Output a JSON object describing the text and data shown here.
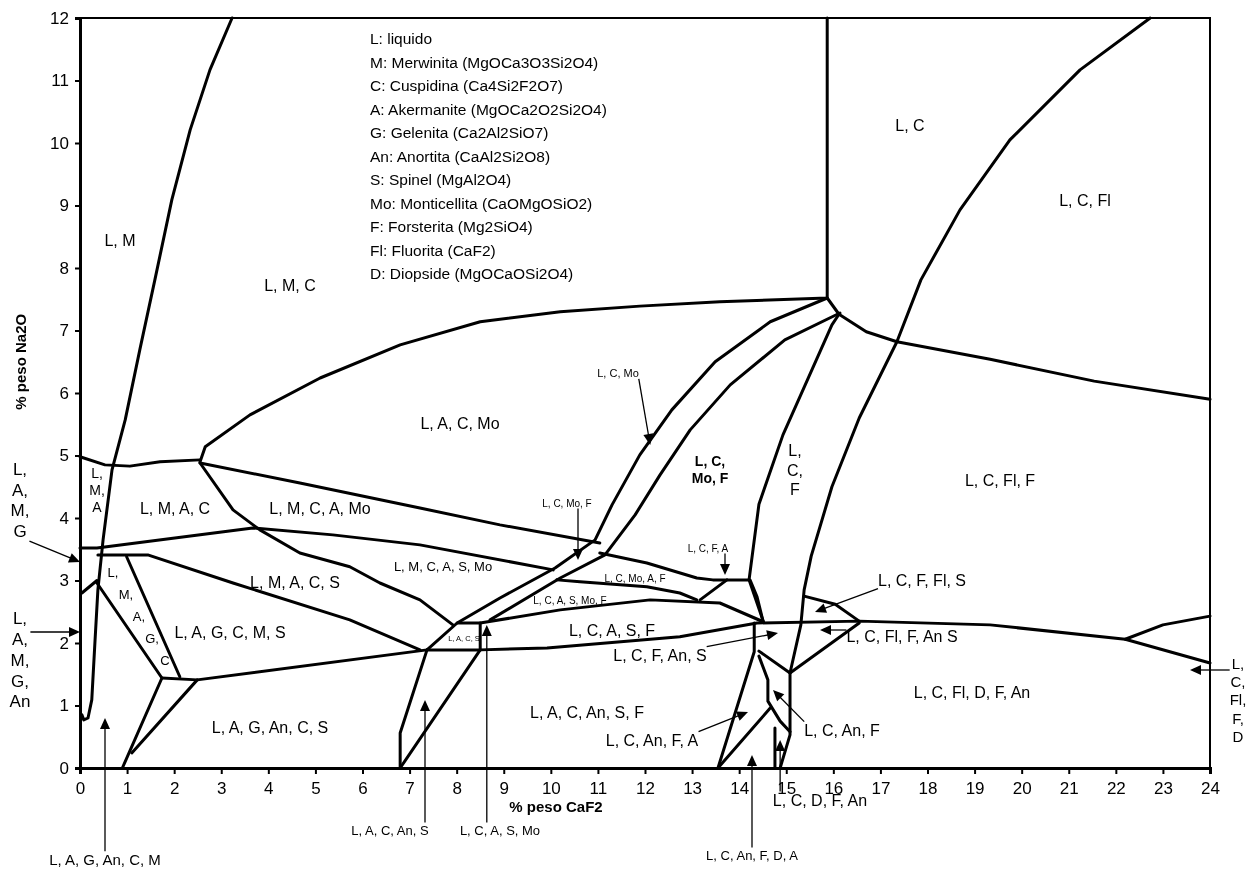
{
  "chart_data": {
    "type": "line",
    "xlabel": "% peso CaF2",
    "ylabel": "% peso Na2O",
    "xlim": [
      0,
      24
    ],
    "ylim": [
      0,
      12
    ],
    "xticks": [
      0,
      1,
      2,
      3,
      4,
      5,
      6,
      7,
      8,
      9,
      10,
      11,
      12,
      13,
      14,
      15,
      16,
      17,
      18,
      19,
      20,
      21,
      22,
      23,
      24
    ],
    "yticks": [
      0,
      1,
      2,
      3,
      4,
      5,
      6,
      7,
      8,
      9,
      10,
      11,
      12
    ],
    "marker": "none",
    "line_style": "solid",
    "series": [
      {
        "color": "#000000",
        "x": [
          3.23,
          2.76,
          2.34,
          1.95,
          1.59,
          1.27,
          0.96,
          0.68,
          0.49,
          0.38,
          0.32,
          0.25,
          0.17,
          0.08,
          0.04
        ],
        "values": [
          12,
          11.17,
          10.21,
          9.09,
          7.81,
          6.69,
          5.57,
          4.77,
          3.65,
          2.85,
          2.05,
          1.09,
          0.8,
          0.77,
          0.85
        ]
      },
      {
        "color": "#000000",
        "x": [
          0,
          0.53,
          1.06,
          1.7,
          2.55
        ],
        "values": [
          4.98,
          4.85,
          4.83,
          4.9,
          4.93
        ]
      },
      {
        "color": "#000000",
        "x": [
          2.55,
          2.66,
          3.61,
          5.1,
          6.8,
          8.5,
          10.2,
          11.89,
          13.59,
          15.87,
          15.87
        ],
        "values": [
          4.9,
          5.14,
          5.65,
          6.24,
          6.77,
          7.14,
          7.3,
          7.39,
          7.46,
          7.52,
          12
        ]
      },
      {
        "color": "#000000",
        "x": [
          22.73,
          21.24,
          19.75,
          18.69,
          17.86,
          17.35,
          16.55,
          15.97,
          15.53,
          15.38,
          15.31,
          15.08,
          15.08,
          14.87
        ],
        "values": [
          12,
          11.17,
          10.05,
          8.93,
          7.81,
          6.82,
          5.6,
          4.5,
          3.39,
          2.85,
          2.29,
          1.52,
          0.53,
          0
        ]
      },
      {
        "color": "#000000",
        "x": [
          15.87,
          16.12,
          16.7,
          17.35,
          19.33,
          21.54,
          24
        ],
        "values": [
          7.52,
          7.26,
          6.98,
          6.82,
          6.54,
          6.19,
          5.9
        ]
      },
      {
        "color": "#000000",
        "x": [
          16.12,
          15.97,
          14.93,
          14.42,
          14.21,
          14.51
        ],
        "values": [
          7.26,
          7.09,
          5.33,
          4.22,
          3.01,
          2.35
        ]
      },
      {
        "color": "#000000",
        "x": [
          15.87,
          14.66,
          13.49,
          12.57,
          11.89,
          11.3,
          10.94,
          10.09,
          8.92,
          8.01,
          7.37
        ],
        "values": [
          7.52,
          7.14,
          6.5,
          5.73,
          5.01,
          4.21,
          3.65,
          3.2,
          2.72,
          2.32,
          1.89
        ]
      },
      {
        "color": "#000000",
        "x": [
          16.14,
          14.97,
          13.81,
          12.96,
          12.32,
          11.79,
          11.15,
          10.2,
          8.71
        ],
        "values": [
          7.28,
          6.85,
          6.13,
          5.41,
          4.69,
          4.05,
          3.41,
          3.04,
          2.37
        ]
      },
      {
        "color": "#000000",
        "x": [
          2.55,
          4.67,
          7.22,
          8.92,
          11.04
        ],
        "values": [
          4.88,
          4.56,
          4.16,
          3.89,
          3.6
        ]
      },
      {
        "color": "#000000",
        "x": [
          2.55,
          3.25,
          3.82,
          4.67,
          5.73,
          6.37,
          7.22,
          7.92
        ],
        "values": [
          4.88,
          4.13,
          3.81,
          3.44,
          3.22,
          2.96,
          2.69,
          2.29
        ]
      },
      {
        "color": "#000000",
        "x": [
          0,
          0.36,
          3.67,
          5.37,
          7.22,
          10.05
        ],
        "values": [
          3.52,
          3.52,
          3.84,
          3.73,
          3.57,
          3.17
        ]
      },
      {
        "color": "#000000",
        "x": [
          0.38,
          1.44,
          3.25,
          5.73,
          7.22
        ],
        "values": [
          3.41,
          3.41,
          2.96,
          2.37,
          1.89
        ]
      },
      {
        "color": "#000000",
        "x": [
          0.99,
          2.12
        ],
        "values": [
          3.38,
          1.46
        ]
      },
      {
        "color": "#000000",
        "x": [
          0.36,
          1.74,
          0.9
        ],
        "values": [
          2.96,
          1.44,
          0
        ]
      },
      {
        "color": "#000000",
        "x": [
          1.74,
          2.49,
          7.37,
          8.5,
          9.92,
          12.74,
          14.38,
          16.55,
          19.33,
          22.2,
          24
        ],
        "values": [
          1.44,
          1.41,
          1.89,
          1.89,
          1.92,
          2.1,
          2.32,
          2.35,
          2.29,
          2.06,
          1.68
        ]
      },
      {
        "color": "#000000",
        "x": [
          2.49,
          1.1
        ],
        "values": [
          1.41,
          0.24
        ]
      },
      {
        "color": "#000000",
        "x": [
          0.04,
          0.36
        ],
        "values": [
          2.8,
          3
        ]
      },
      {
        "color": "#000000",
        "x": [
          8.01,
          8.5,
          8.5
        ],
        "values": [
          2.32,
          2.32,
          1.89
        ]
      },
      {
        "color": "#000000",
        "x": [
          8.5,
          6.8
        ],
        "values": [
          1.89,
          0
        ]
      },
      {
        "color": "#000000",
        "x": [
          7.37,
          6.8,
          6.8
        ],
        "values": [
          1.89,
          0.56,
          0
        ]
      },
      {
        "color": "#000000",
        "x": [
          8.5,
          10.2,
          12.11,
          13.59,
          14.51
        ],
        "values": [
          2.32,
          2.53,
          2.69,
          2.64,
          2.34
        ]
      },
      {
        "color": "#000000",
        "x": [
          22.2,
          23,
          24
        ],
        "values": [
          2.06,
          2.29,
          2.43
        ]
      },
      {
        "color": "#000000",
        "x": [
          15.38,
          16.04,
          16.55
        ],
        "values": [
          2.75,
          2.62,
          2.35
        ]
      },
      {
        "color": "#000000",
        "x": [
          16.55,
          15.08
        ],
        "values": [
          2.32,
          1.52
        ]
      },
      {
        "color": "#000000",
        "x": [
          11.04,
          12.04,
          13.1,
          13.44,
          14.23,
          14.38,
          14.51
        ],
        "values": [
          3.44,
          3.28,
          3.04,
          3.01,
          3.01,
          2.74,
          2.34
        ]
      },
      {
        "color": "#000000",
        "x": [
          10.13,
          10.62,
          12.04,
          12.74,
          13.1
        ],
        "values": [
          3.01,
          2.98,
          2.9,
          2.8,
          2.69
        ]
      },
      {
        "color": "#000000",
        "x": [
          13.17,
          13.74
        ],
        "values": [
          2.69,
          3.01
        ]
      },
      {
        "color": "#000000",
        "x": [
          14.32,
          14.32,
          13.55
        ],
        "values": [
          2.32,
          1.86,
          0
        ]
      },
      {
        "color": "#000000",
        "x": [
          14.42,
          15.08
        ],
        "values": [
          1.87,
          1.52
        ]
      },
      {
        "color": "#000000",
        "x": [
          14.42,
          14.61,
          14.61,
          14.87,
          15.08
        ],
        "values": [
          1.79,
          1.41,
          1.07,
          0.75,
          0.58
        ]
      },
      {
        "color": "#000000",
        "x": [
          13.55,
          14.66
        ],
        "values": [
          0,
          0.96
        ]
      },
      {
        "color": "#000000",
        "x": [
          14.76,
          14.76
        ],
        "values": [
          0.64,
          0
        ]
      }
    ],
    "annotations": [
      "L: liquido",
      "M: Merwinita  (MgOCa3O3Si2O4)",
      "C: Cuspidina (Ca4Si2F2O7)",
      "A: Akermanite (MgOCa2O2Si2O4)",
      "G: Gelenita (Ca2Al2SiO7)",
      "An: Anortita (CaAl2Si2O8)",
      "S: Spinel (MgAl2O4)",
      "Mo: Monticellita (CaOMgOSiO2)",
      "F: Forsterita (Mg2SiO4)",
      "Fl: Fluorita (CaF2)",
      "D: Diopside (MgOCaOSi2O4)",
      "L, M",
      "L, M, C",
      "L, C",
      "L, C, Fl",
      "L, A, C, Mo",
      "L, C,\nMo, F",
      "L,\nC,\nF",
      "L, C, Fl, F",
      "L,\nM,\nA",
      "L, M, A, C",
      "L, M, C, A, Mo",
      "L, M, A, C, S",
      "L, M, C, A, S, Mo",
      "L,\nM,\nA,\nG,\nC",
      "L, A, G, C, M, S",
      "L, A, G, An, C, S",
      "L, A, C, An, S, F",
      "L, C, A, S, F",
      "L, C, Fl, D, F, An",
      "L, A, C, S",
      "L, C, Mo, A, F",
      "L, C, A, S, Mo, F",
      {
        "text": "L, C, Mo",
        "x": 12.11,
        "y": 5.17
      },
      "L, C, Mo, F",
      "L, C, F, A",
      "L, C, F, Fl, S",
      "L, C, Fl, F, An S",
      "L, C, F, An, S",
      "L, C, An, F, A",
      "L, C, An, F",
      {
        "text": "L, C, D, F, An",
        "x": 14.87,
        "y": 0.45
      },
      "L, C, An, F, D, A",
      {
        "text": "L, C, A, S, Mo",
        "x": 8.64,
        "y": 2.29
      },
      "L, A, C, An, S",
      "L, A, G, An, C, M",
      "L,\nA,\nM,\nG",
      "L,\nA,\nM,\nG,\nAn",
      "L,\nC,\nFl,\nF,\nD"
    ]
  }
}
